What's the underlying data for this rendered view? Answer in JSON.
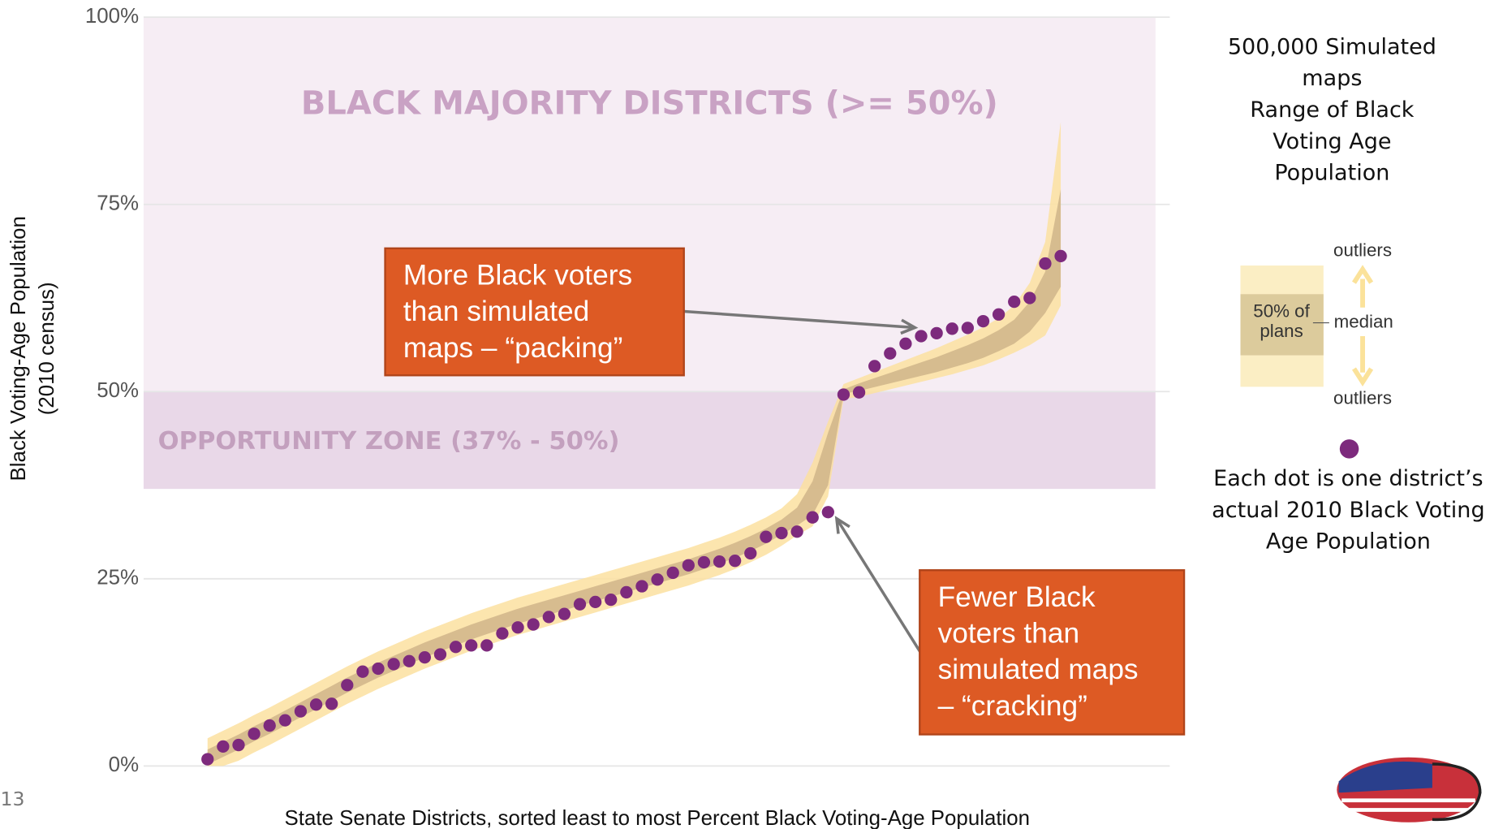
{
  "page_number": "13",
  "chart_data": {
    "type": "scatter",
    "ylabel": [
      "Black Voting-Age Population",
      "(2010 census)"
    ],
    "xlabel": "State Senate Districts, sorted least to most Percent Black Voting-Age Population",
    "ylim": [
      0,
      100
    ],
    "yticks": [
      {
        "value": 0,
        "label": "0%"
      },
      {
        "value": 25,
        "label": "25%"
      },
      {
        "value": 50,
        "label": "50%"
      },
      {
        "value": 75,
        "label": "75%"
      },
      {
        "value": 100,
        "label": "100%"
      }
    ],
    "grid": true,
    "zones": [
      {
        "label": "BLACK MAJORITY DISTRICTS (>= 50%)",
        "range": [
          50,
          100
        ],
        "color": "#f6edf4",
        "text_color": "#c9a2c4"
      },
      {
        "label": "OPPORTUNITY ZONE (37% - 50%)",
        "range": [
          37,
          50
        ],
        "color": "#e9d8e8",
        "text_color": "#c3a0be"
      }
    ],
    "bands": [
      {
        "color": "#fbe1a0",
        "low": [
          0,
          0,
          0.7,
          1.8,
          2.8,
          3.9,
          5,
          6.1,
          7.2,
          8.3,
          9.3,
          10.3,
          11.2,
          12.1,
          13,
          13.8,
          14.6,
          15.4,
          16.1,
          16.8,
          17.5,
          18.1,
          18.7,
          19.3,
          19.9,
          20.5,
          21.1,
          21.7,
          22.3,
          22.9,
          23.5,
          24.1,
          24.8,
          25.5,
          26.3,
          27.2,
          28.2,
          29.4,
          30.8,
          32,
          36,
          49,
          49.3,
          49.8,
          50.3,
          50.8,
          51.3,
          51.8,
          52.3,
          52.9,
          53.5,
          54.3,
          55.2,
          56.2,
          57.5,
          61.5
        ],
        "high": [
          3.7,
          4.7,
          5.7,
          6.8,
          7.8,
          8.9,
          10,
          11.1,
          12.2,
          13.3,
          14.3,
          15.3,
          16.2,
          17.1,
          18,
          18.8,
          19.6,
          20.4,
          21.1,
          21.8,
          22.5,
          23.1,
          23.7,
          24.3,
          24.9,
          25.5,
          26.1,
          26.7,
          27.3,
          27.9,
          28.5,
          29.1,
          29.8,
          30.5,
          31.3,
          32.2,
          33.2,
          34.4,
          36.3,
          40.5,
          46,
          51,
          51.8,
          52.6,
          53.4,
          54.2,
          55,
          55.8,
          56.7,
          57.6,
          58.6,
          59.8,
          61.5,
          64.5,
          70,
          86
        ]
      },
      {
        "color": "#cdb287",
        "low": [
          0.2,
          1.2,
          2.2,
          3.3,
          4.3,
          5.4,
          6.5,
          7.6,
          8.7,
          9.8,
          10.8,
          11.8,
          12.7,
          13.6,
          14.5,
          15.3,
          16.1,
          16.9,
          17.6,
          18.3,
          19,
          19.6,
          20.2,
          20.8,
          21.4,
          22,
          22.6,
          23.2,
          23.8,
          24.4,
          25,
          25.6,
          26.3,
          27,
          27.8,
          28.7,
          29.7,
          30.9,
          32.1,
          33.5,
          37.5,
          49.7,
          50.1,
          50.6,
          51.1,
          51.6,
          52.1,
          52.6,
          53.2,
          53.8,
          54.5,
          55.4,
          56.4,
          58,
          60.5,
          64
        ],
        "high": [
          2.2,
          3.2,
          4.2,
          5.3,
          6.3,
          7.4,
          8.5,
          9.6,
          10.7,
          11.8,
          12.8,
          13.8,
          14.7,
          15.6,
          16.5,
          17.3,
          18.1,
          18.9,
          19.6,
          20.3,
          21,
          21.6,
          22.2,
          22.8,
          23.4,
          24,
          24.6,
          25.2,
          25.8,
          26.4,
          27,
          27.6,
          28.3,
          29,
          29.8,
          30.7,
          31.7,
          32.9,
          34.5,
          38,
          44.5,
          50.3,
          51.1,
          51.8,
          52.5,
          53.2,
          53.9,
          54.6,
          55.4,
          56.2,
          57.1,
          58.2,
          59.6,
          62,
          66,
          77
        ]
      }
    ],
    "dot_color": "#7d2a7d",
    "values": [
      0.9,
      2.6,
      2.8,
      4.3,
      5.4,
      6.1,
      7.3,
      8.2,
      8.3,
      10.8,
      12.6,
      13,
      13.6,
      14,
      14.5,
      14.9,
      15.9,
      16.1,
      16.1,
      17.7,
      18.5,
      18.9,
      19.9,
      20.3,
      21.6,
      21.9,
      22.2,
      23.2,
      24,
      24.9,
      25.8,
      26.8,
      27.2,
      27.3,
      27.4,
      28.4,
      30.6,
      31.1,
      31.3,
      33.2,
      33.9,
      49.6,
      49.9,
      53.4,
      55.1,
      56.4,
      57.4,
      57.8,
      58.4,
      58.5,
      59.4,
      60.3,
      62,
      62.5,
      67.1,
      68.1
    ],
    "annotations": [
      {
        "lines": [
          "More Black voters",
          "than simulated",
          "maps – “packing”"
        ]
      },
      {
        "lines": [
          "Fewer Black",
          "voters than",
          "simulated maps",
          "– “cracking”"
        ]
      }
    ],
    "legend": {
      "title": [
        "500,000 Simulated",
        "maps",
        "Range of Black",
        "Voting Age",
        "Population"
      ],
      "upper": "outliers",
      "inner": [
        "50% of",
        "plans"
      ],
      "median": "median",
      "lower": "outliers",
      "dot_text": [
        "Each dot is one district’s",
        "actual 2010 Black Voting",
        "Age Population"
      ]
    }
  }
}
